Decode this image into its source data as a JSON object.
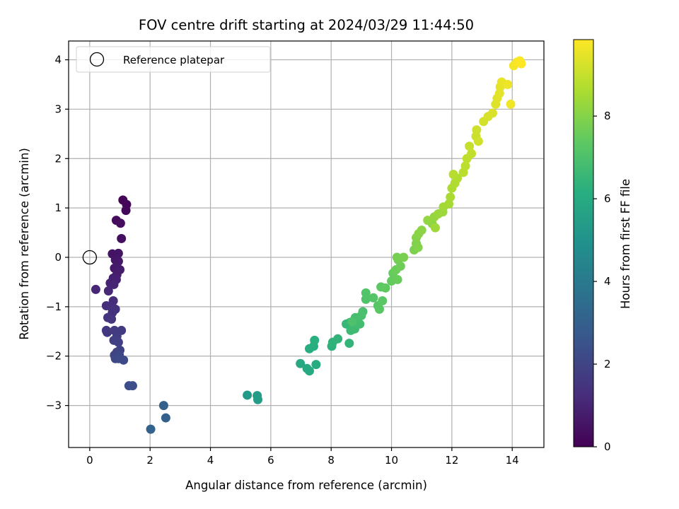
{
  "chart_data": {
    "type": "scatter",
    "title": "FOV centre drift starting at 2024/03/29 11:44:50",
    "xlabel": "Angular distance from reference (arcmin)",
    "ylabel": "Rotation from reference (arcmin)",
    "xlim": [
      -0.7,
      15.05
    ],
    "ylim": [
      -3.85,
      4.38
    ],
    "xticks": [
      "0",
      "2",
      "4",
      "6",
      "8",
      "10",
      "12",
      "14"
    ],
    "yticks": [
      "−3",
      "−2",
      "−1",
      "0",
      "1",
      "2",
      "3",
      "4"
    ],
    "grid": true,
    "legend": {
      "label": "Reference platepar",
      "placement": "top-left"
    },
    "reference_point": {
      "x": 0,
      "y": 0
    },
    "colorbar": {
      "label": "Hours from first FF file",
      "min": 0,
      "max": 9.85,
      "ticks": [
        "0",
        "2",
        "4",
        "6",
        "8"
      ],
      "colormap": "viridis"
    },
    "points": [
      {
        "x": 1.1,
        "y": 1.16,
        "t": 0.1
      },
      {
        "x": 1.22,
        "y": 1.07,
        "t": 0.15
      },
      {
        "x": 1.2,
        "y": 0.95,
        "t": 0.2
      },
      {
        "x": 0.88,
        "y": 0.75,
        "t": 0.3
      },
      {
        "x": 1.02,
        "y": 0.69,
        "t": 0.35
      },
      {
        "x": 1.05,
        "y": 0.38,
        "t": 0.4
      },
      {
        "x": 0.75,
        "y": 0.07,
        "t": 0.5
      },
      {
        "x": 0.95,
        "y": 0.08,
        "t": 0.55
      },
      {
        "x": 0.85,
        "y": -0.05,
        "t": 0.6
      },
      {
        "x": 0.95,
        "y": -0.08,
        "t": 0.65
      },
      {
        "x": 0.82,
        "y": -0.22,
        "t": 0.7
      },
      {
        "x": 1.0,
        "y": -0.25,
        "t": 0.75
      },
      {
        "x": 0.9,
        "y": -0.35,
        "t": 0.8
      },
      {
        "x": 0.78,
        "y": -0.42,
        "t": 0.85
      },
      {
        "x": 0.88,
        "y": -0.45,
        "t": 0.9
      },
      {
        "x": 0.68,
        "y": -0.52,
        "t": 0.95
      },
      {
        "x": 0.8,
        "y": -0.55,
        "t": 1.0
      },
      {
        "x": 0.2,
        "y": -0.65,
        "t": 1.05
      },
      {
        "x": 0.62,
        "y": -0.68,
        "t": 1.1
      },
      {
        "x": 0.78,
        "y": -0.88,
        "t": 1.2
      },
      {
        "x": 0.55,
        "y": -0.98,
        "t": 1.25
      },
      {
        "x": 0.7,
        "y": -1.0,
        "t": 1.3
      },
      {
        "x": 0.85,
        "y": -1.05,
        "t": 1.35
      },
      {
        "x": 0.75,
        "y": -1.12,
        "t": 1.4
      },
      {
        "x": 0.6,
        "y": -1.22,
        "t": 1.45
      },
      {
        "x": 0.72,
        "y": -1.25,
        "t": 1.5
      },
      {
        "x": 0.55,
        "y": -1.48,
        "t": 1.55
      },
      {
        "x": 0.58,
        "y": -1.52,
        "t": 1.6
      },
      {
        "x": 0.82,
        "y": -1.48,
        "t": 1.65
      },
      {
        "x": 1.05,
        "y": -1.48,
        "t": 1.7
      },
      {
        "x": 0.9,
        "y": -1.6,
        "t": 1.75
      },
      {
        "x": 0.8,
        "y": -1.68,
        "t": 1.8
      },
      {
        "x": 0.95,
        "y": -1.72,
        "t": 1.85
      },
      {
        "x": 1.0,
        "y": -1.88,
        "t": 1.9
      },
      {
        "x": 0.9,
        "y": -1.92,
        "t": 1.95
      },
      {
        "x": 0.82,
        "y": -1.98,
        "t": 2.0
      },
      {
        "x": 0.98,
        "y": -1.98,
        "t": 2.05
      },
      {
        "x": 0.85,
        "y": -2.05,
        "t": 2.1
      },
      {
        "x": 0.95,
        "y": -2.05,
        "t": 2.15
      },
      {
        "x": 1.12,
        "y": -2.08,
        "t": 2.2
      },
      {
        "x": 1.3,
        "y": -2.6,
        "t": 2.3
      },
      {
        "x": 1.42,
        "y": -2.6,
        "t": 2.35
      },
      {
        "x": 2.45,
        "y": -3.0,
        "t": 3.0
      },
      {
        "x": 2.52,
        "y": -3.25,
        "t": 3.05
      },
      {
        "x": 2.02,
        "y": -3.48,
        "t": 3.1
      },
      {
        "x": 5.22,
        "y": -2.79,
        "t": 5.3
      },
      {
        "x": 5.55,
        "y": -2.8,
        "t": 5.35
      },
      {
        "x": 5.57,
        "y": -2.88,
        "t": 5.4
      },
      {
        "x": 6.98,
        "y": -2.15,
        "t": 5.9
      },
      {
        "x": 7.2,
        "y": -2.25,
        "t": 5.95
      },
      {
        "x": 7.28,
        "y": -2.3,
        "t": 6.0
      },
      {
        "x": 7.5,
        "y": -2.17,
        "t": 6.05
      },
      {
        "x": 7.28,
        "y": -1.85,
        "t": 6.1
      },
      {
        "x": 7.42,
        "y": -1.8,
        "t": 6.15
      },
      {
        "x": 7.45,
        "y": -1.68,
        "t": 6.2
      },
      {
        "x": 8.02,
        "y": -1.8,
        "t": 6.3
      },
      {
        "x": 8.05,
        "y": -1.72,
        "t": 6.35
      },
      {
        "x": 8.22,
        "y": -1.65,
        "t": 6.4
      },
      {
        "x": 8.6,
        "y": -1.74,
        "t": 6.45
      },
      {
        "x": 8.5,
        "y": -1.35,
        "t": 6.5
      },
      {
        "x": 8.62,
        "y": -1.32,
        "t": 6.55
      },
      {
        "x": 8.7,
        "y": -1.4,
        "t": 6.6
      },
      {
        "x": 8.65,
        "y": -1.48,
        "t": 6.65
      },
      {
        "x": 8.78,
        "y": -1.45,
        "t": 6.7
      },
      {
        "x": 8.85,
        "y": -1.28,
        "t": 6.75
      },
      {
        "x": 8.95,
        "y": -1.35,
        "t": 6.8
      },
      {
        "x": 8.8,
        "y": -1.22,
        "t": 6.85
      },
      {
        "x": 9.0,
        "y": -1.18,
        "t": 6.9
      },
      {
        "x": 9.05,
        "y": -1.1,
        "t": 6.95
      },
      {
        "x": 8.7,
        "y": -1.3,
        "t": 7.0
      },
      {
        "x": 9.15,
        "y": -0.85,
        "t": 7.05
      },
      {
        "x": 9.15,
        "y": -0.72,
        "t": 7.1
      },
      {
        "x": 9.4,
        "y": -0.82,
        "t": 7.15
      },
      {
        "x": 9.55,
        "y": -0.98,
        "t": 7.2
      },
      {
        "x": 9.6,
        "y": -1.05,
        "t": 7.25
      },
      {
        "x": 9.7,
        "y": -0.88,
        "t": 7.3
      },
      {
        "x": 9.65,
        "y": -0.6,
        "t": 7.35
      },
      {
        "x": 9.8,
        "y": -0.62,
        "t": 7.4
      },
      {
        "x": 10.0,
        "y": -0.48,
        "t": 7.45
      },
      {
        "x": 10.05,
        "y": -0.32,
        "t": 7.5
      },
      {
        "x": 10.2,
        "y": -0.45,
        "t": 7.55
      },
      {
        "x": 10.15,
        "y": -0.25,
        "t": 7.6
      },
      {
        "x": 10.3,
        "y": -0.18,
        "t": 7.65
      },
      {
        "x": 10.22,
        "y": -0.05,
        "t": 7.7
      },
      {
        "x": 10.18,
        "y": 0.0,
        "t": 7.75
      },
      {
        "x": 10.4,
        "y": 0.0,
        "t": 7.8
      },
      {
        "x": 10.75,
        "y": 0.15,
        "t": 7.85
      },
      {
        "x": 10.82,
        "y": 0.28,
        "t": 7.9
      },
      {
        "x": 10.88,
        "y": 0.2,
        "t": 7.95
      },
      {
        "x": 10.82,
        "y": 0.4,
        "t": 8.0
      },
      {
        "x": 10.9,
        "y": 0.48,
        "t": 8.05
      },
      {
        "x": 11.0,
        "y": 0.55,
        "t": 8.1
      },
      {
        "x": 11.35,
        "y": 0.68,
        "t": 8.15
      },
      {
        "x": 11.2,
        "y": 0.75,
        "t": 8.2
      },
      {
        "x": 11.42,
        "y": 0.82,
        "t": 8.25
      },
      {
        "x": 11.55,
        "y": 0.88,
        "t": 8.3
      },
      {
        "x": 11.7,
        "y": 0.92,
        "t": 8.35
      },
      {
        "x": 11.45,
        "y": 0.6,
        "t": 8.4
      },
      {
        "x": 11.72,
        "y": 1.02,
        "t": 8.45
      },
      {
        "x": 11.9,
        "y": 1.08,
        "t": 8.5
      },
      {
        "x": 11.95,
        "y": 1.22,
        "t": 8.55
      },
      {
        "x": 12.0,
        "y": 1.4,
        "t": 8.6
      },
      {
        "x": 12.1,
        "y": 1.5,
        "t": 8.65
      },
      {
        "x": 12.18,
        "y": 1.6,
        "t": 8.7
      },
      {
        "x": 12.05,
        "y": 1.68,
        "t": 8.75
      },
      {
        "x": 12.38,
        "y": 1.72,
        "t": 8.8
      },
      {
        "x": 12.45,
        "y": 1.85,
        "t": 8.85
      },
      {
        "x": 12.5,
        "y": 2.0,
        "t": 8.9
      },
      {
        "x": 12.65,
        "y": 2.1,
        "t": 8.95
      },
      {
        "x": 12.58,
        "y": 2.25,
        "t": 9.0
      },
      {
        "x": 12.8,
        "y": 2.45,
        "t": 9.05
      },
      {
        "x": 12.82,
        "y": 2.58,
        "t": 9.1
      },
      {
        "x": 12.88,
        "y": 2.35,
        "t": 9.15
      },
      {
        "x": 13.05,
        "y": 2.75,
        "t": 9.2
      },
      {
        "x": 13.2,
        "y": 2.85,
        "t": 9.25
      },
      {
        "x": 13.35,
        "y": 2.92,
        "t": 9.3
      },
      {
        "x": 13.45,
        "y": 3.1,
        "t": 9.35
      },
      {
        "x": 13.5,
        "y": 3.22,
        "t": 9.4
      },
      {
        "x": 13.58,
        "y": 3.32,
        "t": 9.45
      },
      {
        "x": 13.6,
        "y": 3.45,
        "t": 9.5
      },
      {
        "x": 13.65,
        "y": 3.55,
        "t": 9.55
      },
      {
        "x": 13.85,
        "y": 3.5,
        "t": 9.6
      },
      {
        "x": 13.95,
        "y": 3.1,
        "t": 9.65
      },
      {
        "x": 14.05,
        "y": 3.88,
        "t": 9.7
      },
      {
        "x": 14.15,
        "y": 3.95,
        "t": 9.75
      },
      {
        "x": 14.25,
        "y": 3.98,
        "t": 9.8
      },
      {
        "x": 14.3,
        "y": 3.92,
        "t": 9.85
      }
    ]
  }
}
